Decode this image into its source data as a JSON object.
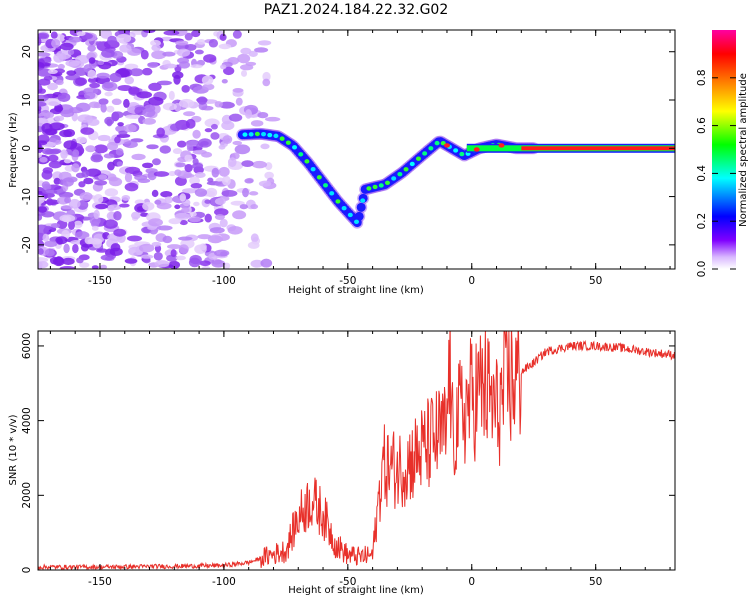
{
  "title": "PAZ1.2024.184.22.32.G02",
  "chart_data": [
    {
      "type": "heatmap",
      "xlabel": "Height of straight line (km)",
      "ylabel": "Frequency (Hz)",
      "xlim": [
        -175,
        82
      ],
      "ylim": [
        -25,
        24.5
      ],
      "xticks": [
        -150,
        -100,
        -50,
        0,
        50
      ],
      "yticks": [
        -20,
        -10,
        0,
        10,
        20
      ],
      "colorbar": {
        "label": "Normalized spectral amplitude",
        "range": [
          0,
          1
        ],
        "ticks": [
          0.0,
          0.2,
          0.4,
          0.6,
          0.8
        ],
        "colors": [
          "#ffffff",
          "#d9b8ff",
          "#8000ff",
          "#0000ff",
          "#00ffff",
          "#00ff00",
          "#ffff00",
          "#ff8000",
          "#ff0000",
          "#ff00a0"
        ]
      },
      "noise_region_x": [
        -175,
        -90
      ],
      "ridge": [
        {
          "x": -93,
          "y": 2.8
        },
        {
          "x": -85,
          "y": 3.0
        },
        {
          "x": -78,
          "y": 2.5
        },
        {
          "x": -72,
          "y": 0.5
        },
        {
          "x": -66,
          "y": -3
        },
        {
          "x": -60,
          "y": -7
        },
        {
          "x": -54,
          "y": -11
        },
        {
          "x": -46,
          "y": -15.5
        },
        {
          "x": -43,
          "y": -8.5
        },
        {
          "x": -35,
          "y": -7.5
        },
        {
          "x": -28,
          "y": -5
        },
        {
          "x": -20,
          "y": -1.5
        },
        {
          "x": -13,
          "y": 1.5
        },
        {
          "x": -8,
          "y": 0
        },
        {
          "x": -3,
          "y": -1.5
        },
        {
          "x": 3,
          "y": 0
        },
        {
          "x": 10,
          "y": 0.8
        },
        {
          "x": 18,
          "y": 0
        },
        {
          "x": 25,
          "y": 0
        },
        {
          "x": 82,
          "y": 0
        }
      ]
    },
    {
      "type": "line",
      "xlabel": "Height of straight line (km)",
      "ylabel": "SNR (10 * v/v)",
      "xlim": [
        -175,
        82
      ],
      "ylim": [
        0,
        6400
      ],
      "xticks": [
        -150,
        -100,
        -50,
        0,
        50
      ],
      "yticks": [
        0,
        2000,
        4000,
        6000
      ],
      "color": "#e8302a",
      "series": [
        {
          "x": [
            -175,
            -150,
            -120,
            -100,
            -90,
            -82,
            -75,
            -70,
            -65,
            -60,
            -55,
            -50,
            -45,
            -40,
            -37,
            -36,
            -30,
            -25,
            -20,
            -15,
            -10,
            -9,
            -8,
            -5,
            0,
            5,
            10,
            15,
            20,
            25,
            30,
            40,
            50,
            60,
            70,
            82
          ],
          "y": [
            80,
            80,
            100,
            120,
            200,
            380,
            520,
            1400,
            1900,
            1500,
            700,
            400,
            350,
            400,
            2200,
            2800,
            2700,
            2900,
            3200,
            3500,
            3700,
            5900,
            3600,
            4100,
            4600,
            4900,
            4200,
            5000,
            5300,
            5550,
            5850,
            6000,
            6000,
            5950,
            5850,
            5750
          ]
        }
      ]
    }
  ]
}
